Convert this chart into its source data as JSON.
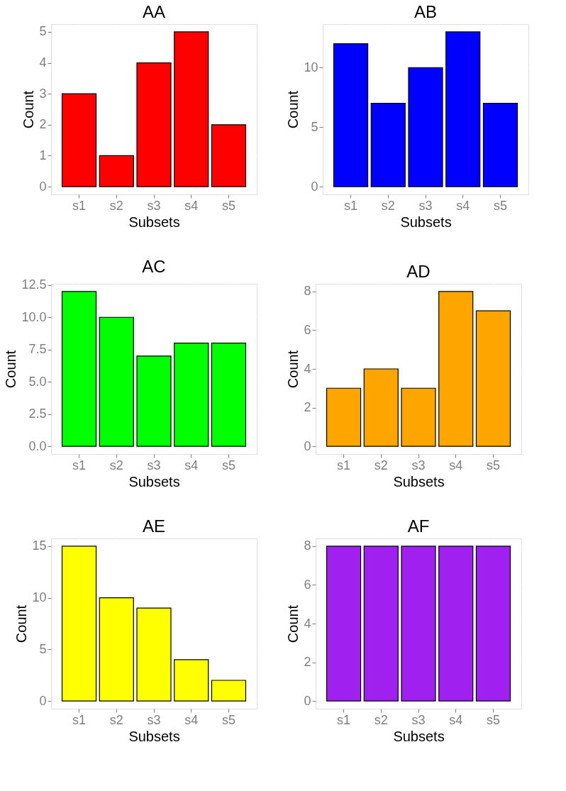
{
  "chart_data": [
    {
      "type": "bar",
      "title": "AA",
      "xlabel": "Subsets",
      "ylabel": "Count",
      "categories": [
        "s1",
        "s2",
        "s3",
        "s4",
        "s5"
      ],
      "values": [
        3,
        1,
        4,
        5,
        2
      ],
      "color": "#ff0000",
      "ylim": [
        -0.25,
        5.25
      ],
      "yticks": [
        0,
        1,
        2,
        3,
        4,
        5
      ],
      "grid": true
    },
    {
      "type": "bar",
      "title": "AB",
      "xlabel": "Subsets",
      "ylabel": "Count",
      "categories": [
        "s1",
        "s2",
        "s3",
        "s4",
        "s5"
      ],
      "values": [
        12,
        7,
        10,
        13,
        7
      ],
      "color": "#0000ff",
      "ylim": [
        -0.65,
        13.65
      ],
      "yticks": [
        0,
        5,
        10
      ],
      "grid": true
    },
    {
      "type": "bar",
      "title": "AC",
      "xlabel": "Subsets",
      "ylabel": "Count",
      "categories": [
        "s1",
        "s2",
        "s3",
        "s4",
        "s5"
      ],
      "values": [
        12,
        10,
        7,
        8,
        8
      ],
      "color": "#00ff00",
      "ylim": [
        -0.6,
        12.6
      ],
      "yticks": [
        {
          "value": 0,
          "label": "0.0"
        },
        2.5,
        {
          "value": 5,
          "label": "5.0"
        },
        7.5,
        {
          "value": 10,
          "label": "10.0"
        },
        12.5
      ],
      "grid": true
    },
    {
      "type": "bar",
      "title": "AD",
      "xlabel": "Subsets",
      "ylabel": "Count",
      "categories": [
        "s1",
        "s2",
        "s3",
        "s4",
        "s5"
      ],
      "values": [
        3,
        4,
        3,
        8,
        7
      ],
      "color": "#ffa500",
      "ylim": [
        -0.4,
        8.4
      ],
      "yticks": [
        0,
        2,
        4,
        6,
        8
      ],
      "grid": true
    },
    {
      "type": "bar",
      "title": "AE",
      "xlabel": "Subsets",
      "ylabel": "Count",
      "categories": [
        "s1",
        "s2",
        "s3",
        "s4",
        "s5"
      ],
      "values": [
        15,
        10,
        9,
        4,
        2
      ],
      "color": "#ffff00",
      "ylim": [
        -0.75,
        15.75
      ],
      "yticks": [
        0,
        5,
        10,
        15
      ],
      "grid": true
    },
    {
      "type": "bar",
      "title": "AF",
      "xlabel": "Subsets",
      "ylabel": "Count",
      "categories": [
        "s1",
        "s2",
        "s3",
        "s4",
        "s5"
      ],
      "values": [
        8,
        8,
        8,
        8,
        8
      ],
      "color": "#a020f0",
      "ylim": [
        -0.4,
        8.4
      ],
      "yticks": [
        0,
        2,
        4,
        6,
        8
      ],
      "grid": true
    }
  ]
}
